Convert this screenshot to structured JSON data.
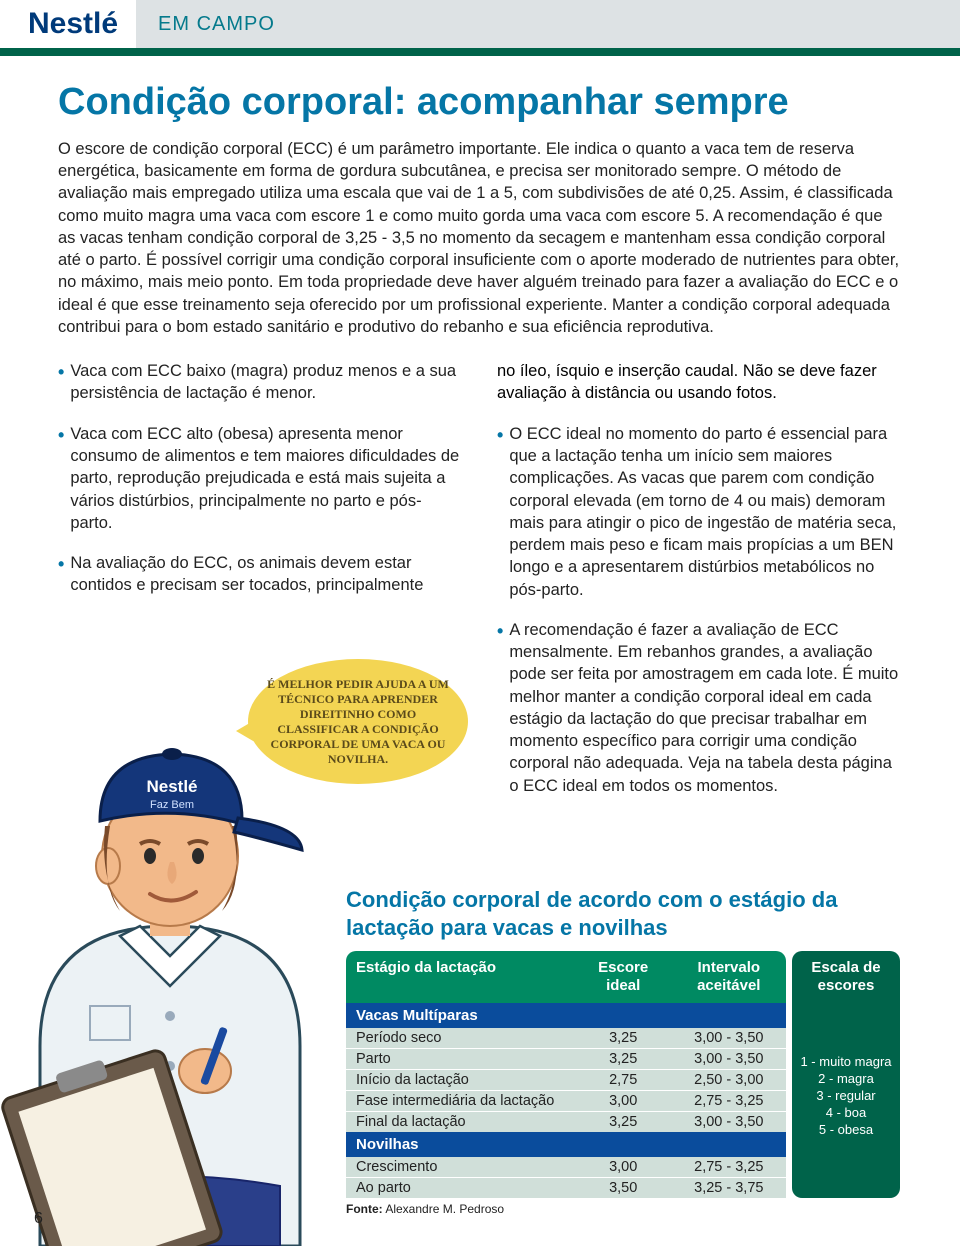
{
  "header": {
    "brand": "Nestlé",
    "section": "EM CAMPO"
  },
  "title": "Condição corporal: acompanhar sempre",
  "intro": "O escore de condição corporal (ECC) é um parâmetro importante. Ele indica o quanto a vaca tem de reserva energética, basicamente em forma de gordura subcutânea, e precisa ser monitorado sempre. O método de avaliação mais empregado utiliza uma escala que vai de 1 a 5, com subdivisões de até 0,25. Assim, é classificada como muito magra uma vaca com escore 1 e como muito gorda uma vaca com escore 5. A recomendação é que as vacas tenham condição corporal de 3,25 - 3,5 no momento da secagem e mantenham essa condição corporal até o parto. É possível corrigir uma condição corporal insuficiente com o aporte moderado de nutrientes para obter, no máximo, mais meio ponto. Em toda propriedade deve haver alguém treinado para fazer a avaliação do ECC e o ideal é que esse treinamento seja oferecido por um profissional experiente. Manter a condição corporal adequada contribui para o bom estado sanitário e produtivo do rebanho e sua eficiência reprodutiva.",
  "left_bullets": [
    "Vaca com ECC baixo (magra) produz menos e a sua persistência de lactação é menor.",
    "Vaca com ECC alto (obesa) apresenta menor consumo de alimentos e tem maiores dificuldades de parto, reprodução prejudicada e está mais sujeita a vários distúrbios, principalmente no parto e pós-parto.",
    "Na avaliação do ECC, os animais devem estar contidos e precisam ser tocados, principalmente"
  ],
  "right_top": "no íleo, ísquio e inserção caudal. Não se deve fazer avaliação à distância ou usando fotos.",
  "right_bullets": [
    "O ECC ideal no momento do parto é essencial para que a lactação tenha um início sem maiores complicações. As vacas que parem com condição corporal elevada (em torno de 4 ou mais) demoram mais para atingir o pico de ingestão de matéria seca, perdem mais peso e ficam mais propícias a um BEN longo e a apresentarem distúrbios metabólicos no pós-parto.",
    "A recomendação é fazer a avaliação de ECC mensalmente. Em rebanhos grandes, a avaliação pode ser feita por amostragem em cada lote. É muito melhor manter a condição corporal ideal em cada estágio da lactação do que precisar trabalhar em momento específico para corrigir uma condição corporal não adequada. Veja na tabela desta página o ECC ideal em todos os momentos."
  ],
  "speech": "É MELHOR PEDIR AJUDA A UM TÉCNICO PARA APRENDER DIREITINHO COMO CLASSIFICAR A CONDIÇÃO CORPORAL DE UMA VACA OU NOVILHA.",
  "cap_brand": "Nestlé",
  "cap_sub": "Faz Bem",
  "table": {
    "title": "Condição corporal de acordo com o estágio da lactação para vacas e novilhas",
    "cols": [
      "Estágio da lactação",
      "Escore ideal",
      "Intervalo aceitável"
    ],
    "section1": "Vacas Multíparas",
    "rows1": [
      [
        "Período seco",
        "3,25",
        "3,00 - 3,50"
      ],
      [
        "Parto",
        "3,25",
        "3,00 - 3,50"
      ],
      [
        "Início da lactação",
        "2,75",
        "2,50 - 3,00"
      ],
      [
        "Fase intermediária da lactação",
        "3,00",
        "2,75 - 3,25"
      ],
      [
        "Final da lactação",
        "3,25",
        "3,00 - 3,50"
      ]
    ],
    "section2": "Novilhas",
    "rows2": [
      [
        "Crescimento",
        "3,00",
        "2,75 - 3,25"
      ],
      [
        "Ao parto",
        "3,50",
        "3,25 - 3,75"
      ]
    ],
    "scale_head": "Escala de escores",
    "scale": [
      "1 - muito magra",
      "2 - magra",
      "3 - regular",
      "4 - boa",
      "5 - obesa"
    ],
    "fonte_label": "Fonte:",
    "fonte": "Alexandre M. Pedroso"
  },
  "pagenum": "6",
  "colors": {
    "title": "#0576a6",
    "green": "#008a62",
    "darkgreen": "#00634a",
    "blue": "#0a4c9c",
    "rowbg": "#d0dfd9",
    "bubble": "#f3d553"
  }
}
